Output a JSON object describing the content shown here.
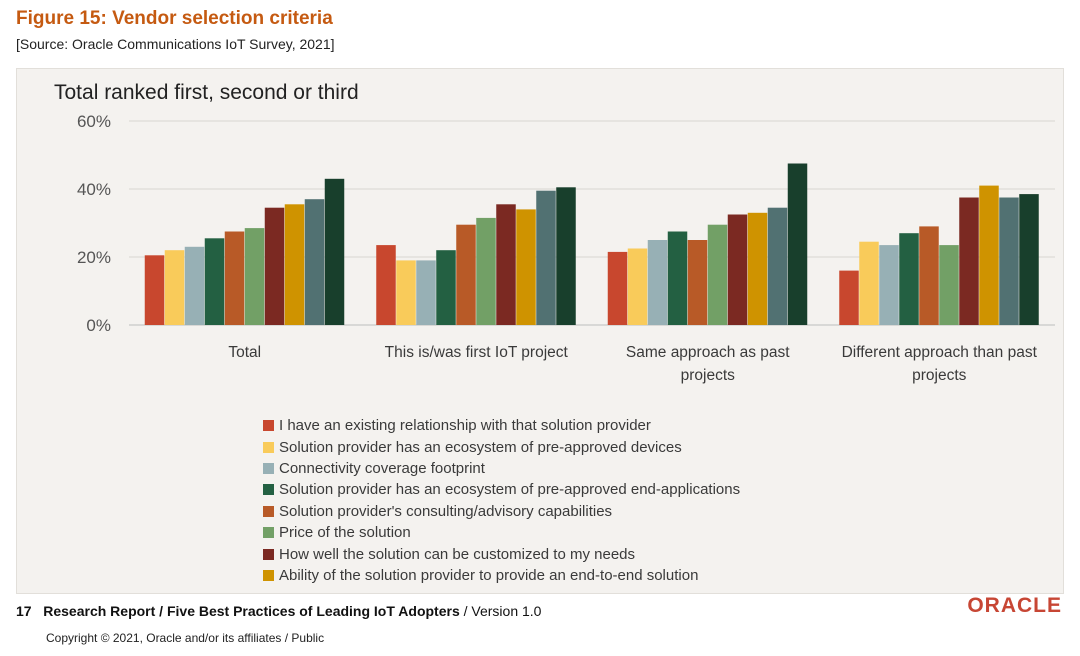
{
  "figure_title": "Figure 15: Vendor selection criteria",
  "source": "[Source: Oracle Communications IoT Survey, 2021]",
  "chart_data": {
    "type": "bar",
    "title": "Total ranked first, second or third",
    "ylim": [
      0,
      60
    ],
    "yticks": [
      "0%",
      "20%",
      "40%",
      "60%"
    ],
    "ytick_values": [
      0,
      20,
      40,
      60
    ],
    "grid": true,
    "legend_position": "bottom",
    "categories": [
      [
        "Total"
      ],
      [
        "This is/was first IoT project"
      ],
      [
        "Same approach as past",
        "projects"
      ],
      [
        "Different approach than past",
        "projects"
      ]
    ],
    "series": [
      {
        "name": "I have an existing relationship with that solution provider",
        "color": "#C8472E",
        "values": [
          20.5,
          23.5,
          21.5,
          16
        ]
      },
      {
        "name": "Solution provider has an ecosystem of pre-approved devices",
        "color": "#F9CB5A",
        "values": [
          22,
          19,
          22.5,
          24.5
        ]
      },
      {
        "name": "Connectivity coverage footprint",
        "color": "#97B0B5",
        "values": [
          23,
          19,
          25,
          23.5
        ]
      },
      {
        "name": "Solution provider has an ecosystem of pre-approved end-applications",
        "color": "#236042",
        "values": [
          25.5,
          22,
          27.5,
          27
        ]
      },
      {
        "name": "Solution provider's consulting/advisory capabilities",
        "color": "#B85A27",
        "values": [
          27.5,
          29.5,
          25,
          29
        ]
      },
      {
        "name": "Price of the solution",
        "color": "#72A066",
        "values": [
          28.5,
          31.5,
          29.5,
          23.5
        ]
      },
      {
        "name": "How well the solution can be customized to my needs",
        "color": "#7B2922",
        "values": [
          34.5,
          35.5,
          32.5,
          37.5
        ]
      },
      {
        "name": "Ability of the solution provider to provide an end-to-end solution",
        "color": "#CF9300",
        "values": [
          35.5,
          34,
          33,
          41
        ]
      },
      {
        "name": "",
        "color": "#517172",
        "values": [
          37,
          39.5,
          34.5,
          37.5
        ]
      },
      {
        "name": "",
        "color": "#183F2C",
        "values": [
          43,
          40.5,
          47.5,
          38.5
        ]
      }
    ]
  },
  "footer": {
    "page_number": "17",
    "report_title": "Research Report  /  Five Best Practices of Leading IoT Adopters",
    "version": "  /  Version 1.0",
    "copyright": "Copyright © 2021, Oracle and/or its affiliates  /  Public",
    "logo_text": "ORACLE"
  }
}
